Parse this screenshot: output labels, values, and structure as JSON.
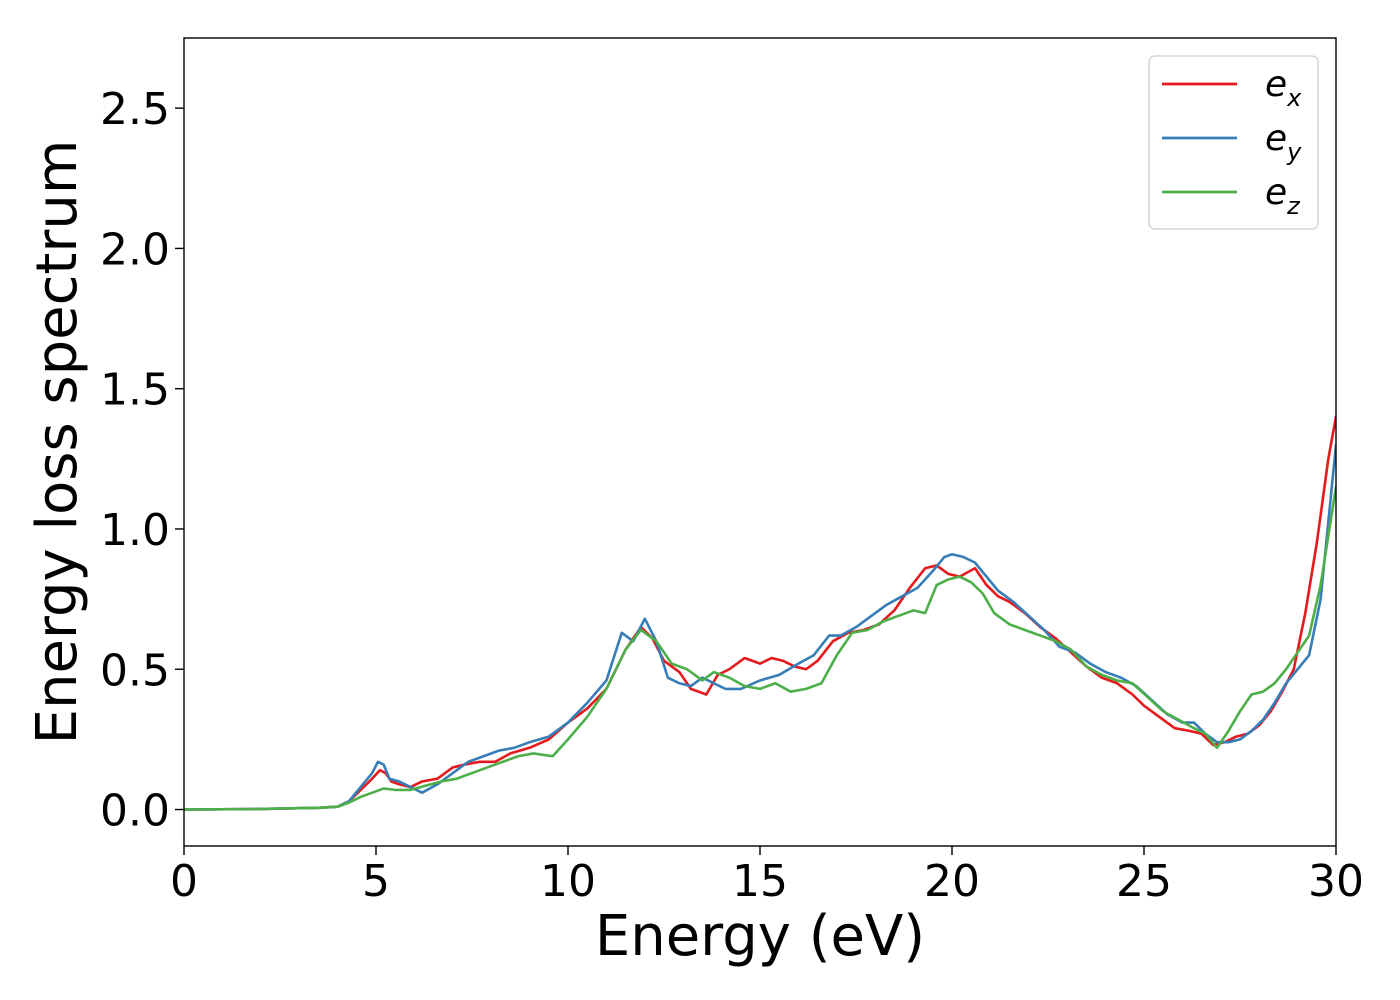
{
  "chart_data": {
    "type": "line",
    "title": "",
    "xlabel": "Energy (eV)",
    "ylabel": "Energy loss spectrum",
    "xlim": [
      0,
      30
    ],
    "ylim": [
      -0.13,
      2.75
    ],
    "xticks": [
      0,
      5,
      10,
      15,
      20,
      25,
      30
    ],
    "xtick_labels": [
      "0",
      "5",
      "10",
      "15",
      "20",
      "25",
      "30"
    ],
    "yticks": [
      0.0,
      0.5,
      1.0,
      1.5,
      2.0,
      2.5
    ],
    "ytick_labels": [
      "0.0",
      "0.5",
      "1.0",
      "1.5",
      "2.0",
      "2.5"
    ],
    "grid": false,
    "legend_position": "top-right",
    "series": [
      {
        "name": "e",
        "subscript": "x",
        "color": "#e41a1c",
        "x": [
          0,
          2,
          3.5,
          4.0,
          4.3,
          4.6,
          4.9,
          5.1,
          5.25,
          5.4,
          5.6,
          5.9,
          6.2,
          6.6,
          7.0,
          7.3,
          7.7,
          8.1,
          8.5,
          9.0,
          9.5,
          10.0,
          10.5,
          11.0,
          11.5,
          11.9,
          12.2,
          12.5,
          12.9,
          13.2,
          13.6,
          13.9,
          14.2,
          14.6,
          15.0,
          15.3,
          15.6,
          15.9,
          16.2,
          16.5,
          16.9,
          17.3,
          17.7,
          18.1,
          18.5,
          18.9,
          19.3,
          19.6,
          19.9,
          20.2,
          20.6,
          20.9,
          21.2,
          21.5,
          21.9,
          22.3,
          22.7,
          23.1,
          23.5,
          23.9,
          24.3,
          24.7,
          25.0,
          25.4,
          25.8,
          26.2,
          26.5,
          26.8,
          27.1,
          27.4,
          27.7,
          28.0,
          28.3,
          28.6,
          28.9,
          29.2,
          29.5,
          29.8,
          30.0
        ],
        "y": [
          0.0,
          0.002,
          0.006,
          0.01,
          0.03,
          0.07,
          0.11,
          0.14,
          0.13,
          0.1,
          0.09,
          0.08,
          0.1,
          0.11,
          0.15,
          0.16,
          0.17,
          0.17,
          0.2,
          0.22,
          0.25,
          0.31,
          0.36,
          0.43,
          0.57,
          0.65,
          0.61,
          0.53,
          0.49,
          0.43,
          0.41,
          0.48,
          0.5,
          0.54,
          0.52,
          0.54,
          0.53,
          0.51,
          0.5,
          0.53,
          0.6,
          0.63,
          0.64,
          0.66,
          0.71,
          0.79,
          0.86,
          0.87,
          0.84,
          0.83,
          0.86,
          0.8,
          0.76,
          0.74,
          0.7,
          0.65,
          0.61,
          0.56,
          0.51,
          0.47,
          0.45,
          0.41,
          0.37,
          0.33,
          0.29,
          0.28,
          0.27,
          0.23,
          0.24,
          0.26,
          0.27,
          0.3,
          0.35,
          0.42,
          0.5,
          0.7,
          0.95,
          1.25,
          1.4
        ]
      },
      {
        "name": "e",
        "subscript": "y",
        "color": "#377eb8",
        "x": [
          0,
          2,
          3.5,
          4.0,
          4.3,
          4.6,
          4.9,
          5.05,
          5.2,
          5.35,
          5.6,
          5.9,
          6.2,
          6.6,
          7.0,
          7.4,
          7.8,
          8.2,
          8.6,
          9.0,
          9.5,
          10.0,
          10.5,
          11.0,
          11.4,
          11.7,
          12.0,
          12.3,
          12.6,
          12.9,
          13.2,
          13.5,
          13.8,
          14.1,
          14.5,
          15.0,
          15.5,
          16.0,
          16.4,
          16.8,
          17.1,
          17.5,
          17.9,
          18.3,
          18.7,
          19.1,
          19.5,
          19.8,
          20.0,
          20.3,
          20.6,
          20.9,
          21.2,
          21.6,
          22.0,
          22.4,
          22.8,
          23.2,
          23.6,
          24.0,
          24.4,
          24.8,
          25.2,
          25.6,
          26.0,
          26.3,
          26.6,
          26.9,
          27.2,
          27.5,
          27.8,
          28.1,
          28.4,
          28.7,
          29.0,
          29.3,
          29.6,
          30.0
        ],
        "y": [
          0.0,
          0.002,
          0.006,
          0.01,
          0.03,
          0.08,
          0.13,
          0.17,
          0.16,
          0.11,
          0.1,
          0.08,
          0.06,
          0.09,
          0.13,
          0.17,
          0.19,
          0.21,
          0.22,
          0.24,
          0.26,
          0.31,
          0.38,
          0.46,
          0.63,
          0.6,
          0.68,
          0.6,
          0.47,
          0.45,
          0.44,
          0.47,
          0.45,
          0.43,
          0.43,
          0.46,
          0.48,
          0.52,
          0.55,
          0.62,
          0.62,
          0.65,
          0.69,
          0.73,
          0.76,
          0.79,
          0.85,
          0.9,
          0.91,
          0.9,
          0.88,
          0.83,
          0.78,
          0.74,
          0.69,
          0.64,
          0.58,
          0.56,
          0.52,
          0.49,
          0.47,
          0.44,
          0.39,
          0.34,
          0.31,
          0.31,
          0.27,
          0.24,
          0.24,
          0.25,
          0.28,
          0.32,
          0.38,
          0.45,
          0.5,
          0.55,
          0.75,
          1.3
        ]
      },
      {
        "name": "e",
        "subscript": "z",
        "color": "#4daf4a",
        "x": [
          0,
          2,
          3.5,
          4.0,
          4.3,
          4.6,
          4.9,
          5.2,
          5.5,
          5.9,
          6.3,
          6.7,
          7.1,
          7.5,
          7.9,
          8.3,
          8.7,
          9.1,
          9.6,
          10.0,
          10.5,
          11.0,
          11.5,
          11.9,
          12.3,
          12.7,
          13.1,
          13.5,
          13.8,
          14.2,
          14.6,
          15.0,
          15.4,
          15.8,
          16.2,
          16.6,
          17.0,
          17.4,
          17.8,
          18.2,
          18.6,
          19.0,
          19.3,
          19.6,
          19.9,
          20.2,
          20.5,
          20.8,
          21.1,
          21.5,
          21.9,
          22.3,
          22.7,
          23.1,
          23.5,
          23.9,
          24.3,
          24.7,
          25.1,
          25.5,
          25.9,
          26.3,
          26.6,
          26.9,
          27.2,
          27.5,
          27.8,
          28.1,
          28.4,
          28.7,
          29.0,
          29.3,
          29.6,
          30.0
        ],
        "y": [
          0.0,
          0.002,
          0.006,
          0.01,
          0.025,
          0.045,
          0.06,
          0.075,
          0.07,
          0.07,
          0.085,
          0.1,
          0.11,
          0.13,
          0.15,
          0.17,
          0.19,
          0.2,
          0.19,
          0.25,
          0.33,
          0.43,
          0.57,
          0.64,
          0.6,
          0.52,
          0.5,
          0.46,
          0.49,
          0.47,
          0.44,
          0.43,
          0.45,
          0.42,
          0.43,
          0.45,
          0.55,
          0.63,
          0.64,
          0.67,
          0.69,
          0.71,
          0.7,
          0.8,
          0.82,
          0.83,
          0.81,
          0.77,
          0.7,
          0.66,
          0.64,
          0.62,
          0.6,
          0.57,
          0.51,
          0.48,
          0.46,
          0.45,
          0.4,
          0.35,
          0.32,
          0.29,
          0.27,
          0.22,
          0.28,
          0.35,
          0.41,
          0.42,
          0.45,
          0.5,
          0.56,
          0.62,
          0.8,
          1.15
        ]
      }
    ]
  }
}
